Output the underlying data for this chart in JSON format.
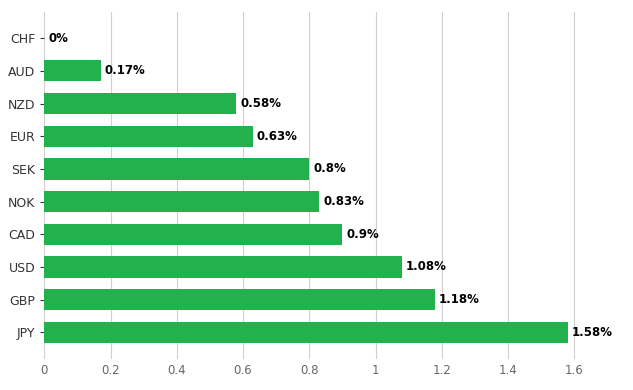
{
  "categories": [
    "JPY",
    "GBP",
    "USD",
    "CAD",
    "NOK",
    "SEK",
    "EUR",
    "NZD",
    "AUD",
    "CHF"
  ],
  "values": [
    1.58,
    1.18,
    1.08,
    0.9,
    0.83,
    0.8,
    0.63,
    0.58,
    0.17,
    0.0
  ],
  "labels": [
    "1.58%",
    "1.18%",
    "1.08%",
    "0.9%",
    "0.83%",
    "0.8%",
    "0.63%",
    "0.58%",
    "0.17%",
    "0%"
  ],
  "bar_color": "#22b14c",
  "background_color": "#ffffff",
  "grid_color": "#d0d0d0",
  "text_color": "#000000",
  "xlim": [
    0,
    1.72
  ],
  "xticks": [
    0,
    0.2,
    0.4,
    0.6,
    0.8,
    1.0,
    1.2,
    1.4,
    1.6
  ],
  "bar_height": 0.65,
  "label_fontsize": 8.5,
  "tick_fontsize": 8.5,
  "ytick_fontsize": 9
}
